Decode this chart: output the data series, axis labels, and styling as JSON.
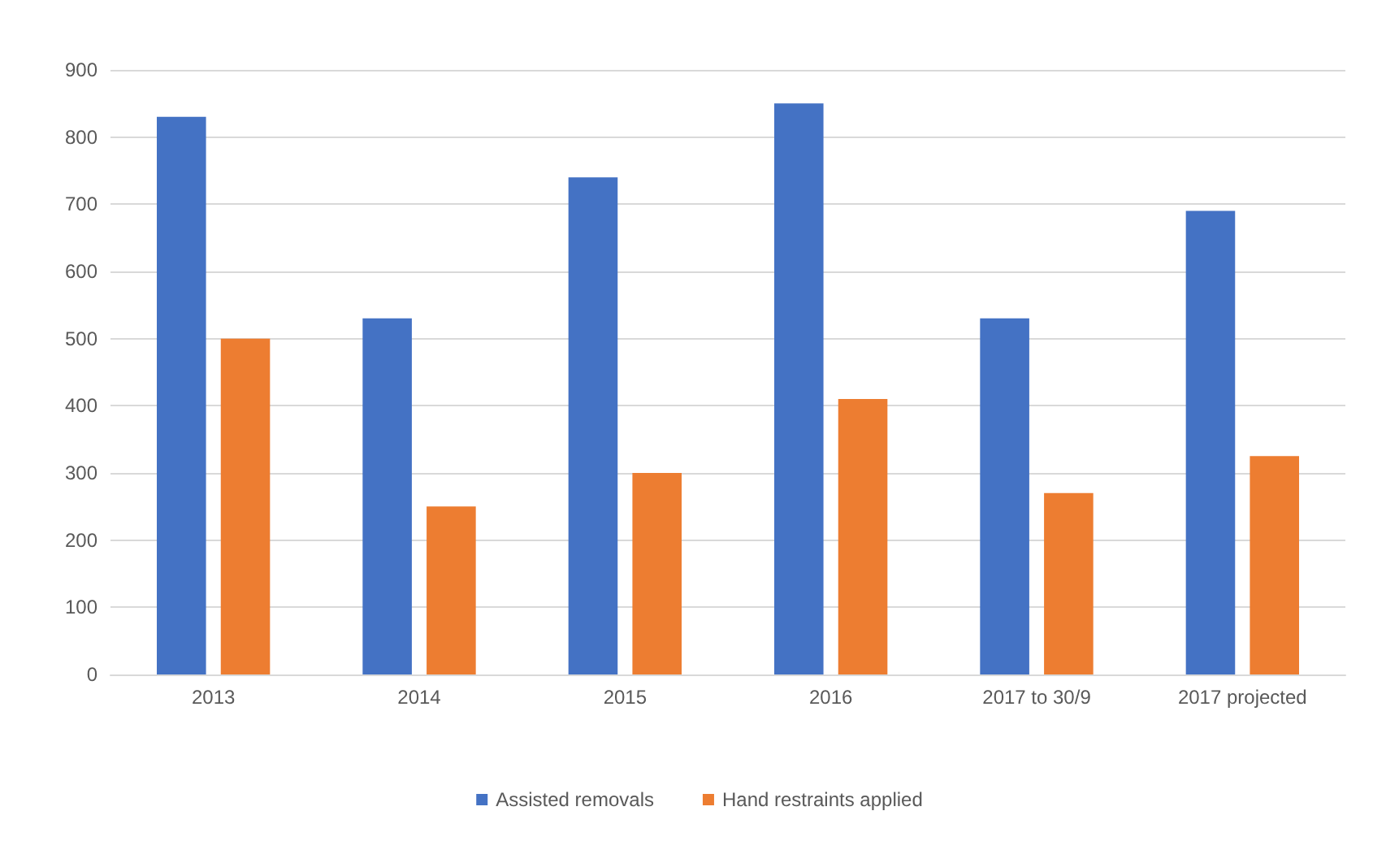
{
  "chart_data": {
    "type": "bar",
    "categories": [
      "2013",
      "2014",
      "2015",
      "2016",
      "2017 to 30/9",
      "2017 projected"
    ],
    "series": [
      {
        "name": "Assisted removals",
        "color": "#4472c4",
        "values": [
          830,
          530,
          740,
          850,
          530,
          690
        ]
      },
      {
        "name": "Hand restraints applied",
        "color": "#ed7d31",
        "values": [
          500,
          250,
          300,
          410,
          270,
          325
        ]
      }
    ],
    "ylim": [
      0,
      900
    ],
    "yticks": [
      0,
      100,
      200,
      300,
      400,
      500,
      600,
      700,
      800,
      900
    ],
    "grid": "y",
    "legend": "bottom"
  }
}
